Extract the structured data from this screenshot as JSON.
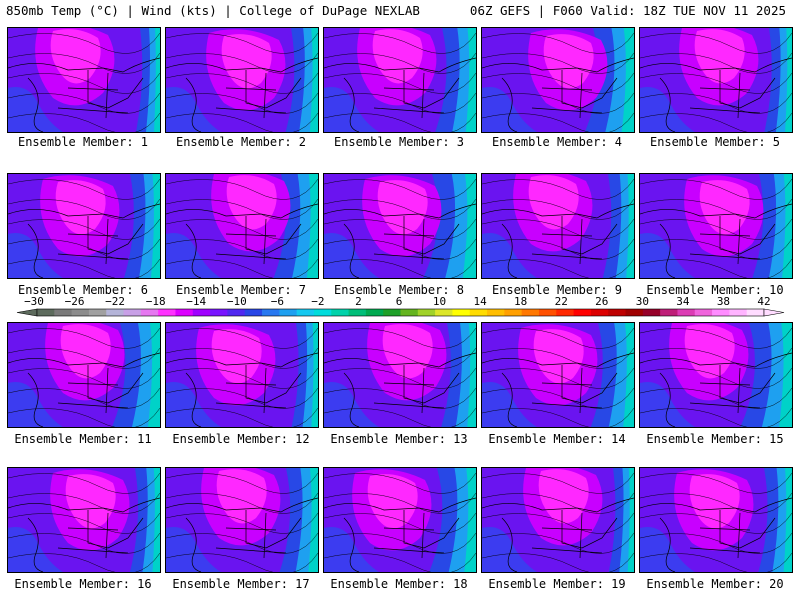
{
  "header": {
    "title_left": "850mb Temp (°C) | Wind (kts) | College of DuPage NEXLAB",
    "title_right": "06Z GEFS | F060 Valid: 18Z TUE NOV 11 2025"
  },
  "members": [
    {
      "caption": "Ensemble Member: 1"
    },
    {
      "caption": "Ensemble Member: 2"
    },
    {
      "caption": "Ensemble Member: 3"
    },
    {
      "caption": "Ensemble Member: 4"
    },
    {
      "caption": "Ensemble Member: 5"
    },
    {
      "caption": "Ensemble Member: 6"
    },
    {
      "caption": "Ensemble Member: 7"
    },
    {
      "caption": "Ensemble Member: 8"
    },
    {
      "caption": "Ensemble Member: 9"
    },
    {
      "caption": "Ensemble Member: 10"
    },
    {
      "caption": "Ensemble Member: 11"
    },
    {
      "caption": "Ensemble Member: 12"
    },
    {
      "caption": "Ensemble Member: 13"
    },
    {
      "caption": "Ensemble Member: 14"
    },
    {
      "caption": "Ensemble Member: 15"
    },
    {
      "caption": "Ensemble Member: 16"
    },
    {
      "caption": "Ensemble Member: 17"
    },
    {
      "caption": "Ensemble Member: 18"
    },
    {
      "caption": "Ensemble Member: 19"
    },
    {
      "caption": "Ensemble Member: 20"
    }
  ],
  "colorbar": {
    "labels": [
      "−30",
      "−26",
      "−22",
      "−18",
      "−14",
      "−10",
      "−6",
      "−2",
      "2",
      "6",
      "10",
      "14",
      "18",
      "22",
      "26",
      "30",
      "34",
      "38",
      "42"
    ],
    "colors": [
      "#5d6b5d",
      "#7a7a7a",
      "#8c8c8c",
      "#a0a0a0",
      "#b4b4d8",
      "#c8a0e6",
      "#e678f0",
      "#ff32ff",
      "#dc00ff",
      "#a000ff",
      "#7814ff",
      "#5028f0",
      "#2846e6",
      "#2878f0",
      "#1ea0f0",
      "#14c8f0",
      "#00dcdc",
      "#00d2aa",
      "#00be78",
      "#00aa50",
      "#1ea028",
      "#64b41e",
      "#a0d228",
      "#dce628",
      "#ffff00",
      "#ffdc00",
      "#ffbe00",
      "#ffa000",
      "#ff7800",
      "#ff5000",
      "#ff2800",
      "#ff0000",
      "#dc0000",
      "#be0000",
      "#a00000",
      "#960028",
      "#be1e78",
      "#dc3cb4",
      "#f064dc",
      "#ff8cff",
      "#ffb4ff",
      "#ffdcff"
    ]
  }
}
